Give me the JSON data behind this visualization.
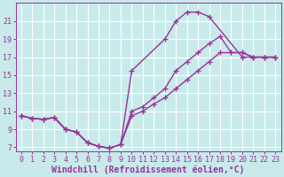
{
  "background_color": "#c8eaea",
  "grid_color": "#ffffff",
  "line_color": "#993399",
  "marker_style": "+",
  "marker_size": 4,
  "line_width": 1.0,
  "xlabel": "Windchill (Refroidissement éolien,°C)",
  "xlabel_fontsize": 7.0,
  "tick_fontsize": 6.0,
  "ylim": [
    6.5,
    23
  ],
  "xlim": [
    -0.5,
    23.5
  ],
  "yticks": [
    7,
    9,
    11,
    13,
    15,
    17,
    19,
    21
  ],
  "xticks": [
    0,
    1,
    2,
    3,
    4,
    5,
    6,
    7,
    8,
    9,
    10,
    11,
    12,
    13,
    14,
    15,
    16,
    17,
    18,
    19,
    20,
    21,
    22,
    23
  ],
  "series": [
    {
      "x": [
        0,
        1,
        2,
        3,
        4,
        5,
        6,
        7,
        8,
        9,
        10,
        13,
        14,
        15,
        16,
        17,
        20,
        21,
        22,
        23
      ],
      "y": [
        10.5,
        10.2,
        10.1,
        10.3,
        9.0,
        8.7,
        7.5,
        7.1,
        6.9,
        7.3,
        15.5,
        19.0,
        21.0,
        22.0,
        22.0,
        21.5,
        17.0,
        17.0,
        17.0,
        17.0
      ]
    },
    {
      "x": [
        0,
        1,
        2,
        3,
        4,
        5,
        6,
        7,
        8,
        9,
        10,
        11,
        12,
        13,
        14,
        15,
        16,
        17,
        18,
        19,
        20,
        21,
        22,
        23
      ],
      "y": [
        10.5,
        10.2,
        10.1,
        10.3,
        9.0,
        8.7,
        7.5,
        7.1,
        6.9,
        7.3,
        11.0,
        11.5,
        12.5,
        13.5,
        15.5,
        16.5,
        17.5,
        18.5,
        19.3,
        17.5,
        17.5,
        17.0,
        17.0,
        17.0
      ]
    },
    {
      "x": [
        0,
        1,
        2,
        3,
        4,
        5,
        6,
        7,
        8,
        9,
        10,
        11,
        12,
        13,
        14,
        15,
        16,
        17,
        18,
        19,
        20,
        21,
        22,
        23
      ],
      "y": [
        10.5,
        10.2,
        10.1,
        10.3,
        9.0,
        8.7,
        7.5,
        7.1,
        6.9,
        7.3,
        10.5,
        11.0,
        11.8,
        12.5,
        13.5,
        14.5,
        15.5,
        16.5,
        17.5,
        17.5,
        17.5,
        17.0,
        17.0,
        17.0
      ]
    }
  ]
}
